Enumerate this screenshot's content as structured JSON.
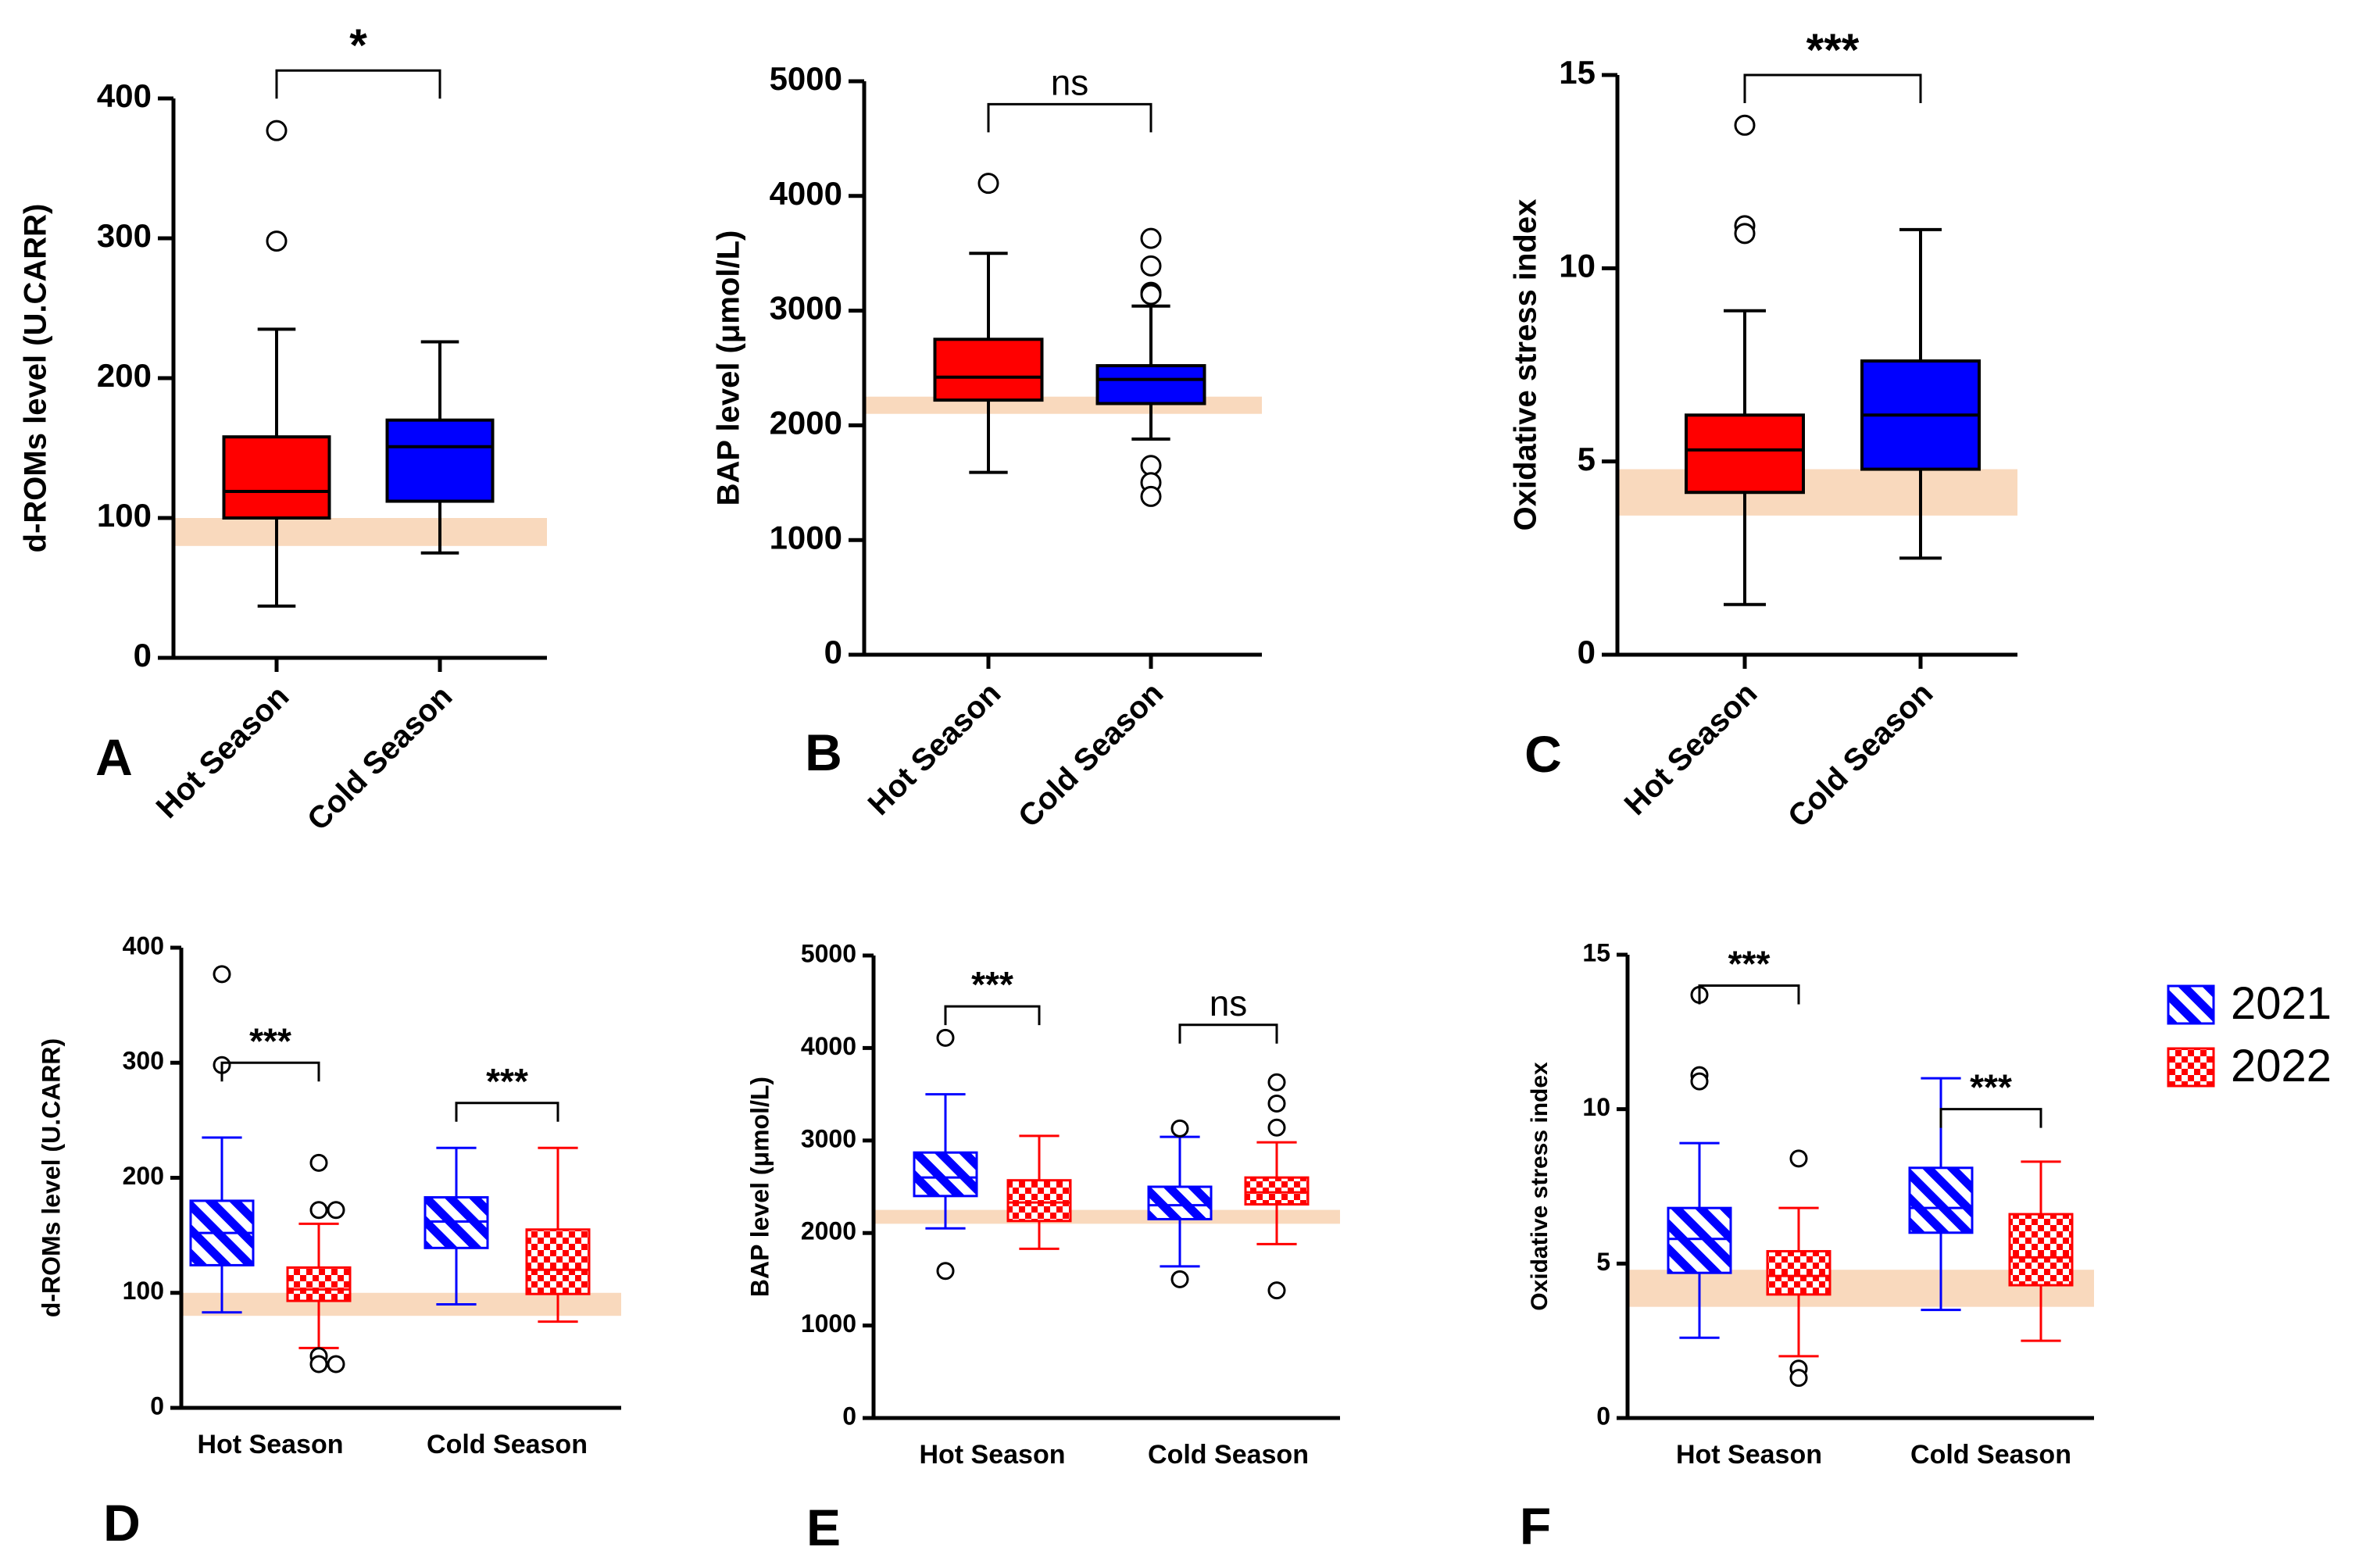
{
  "figure": {
    "legend": {
      "entries": [
        {
          "label": "2021",
          "color": "#0000ff",
          "pattern": "diagonal-stripes"
        },
        {
          "label": "2022",
          "color": "#ff0000",
          "pattern": "checkerboard"
        }
      ]
    },
    "colors": {
      "hot": "#ff0000",
      "cold": "#0000ff",
      "reference_band": "#f9d9bd",
      "text": "#000000"
    }
  },
  "chart_data": [
    {
      "panel": "A",
      "type": "box",
      "ylabel": "d-ROMs level (U.CARR)",
      "ylim": [
        0,
        400
      ],
      "yticks": [
        0,
        100,
        200,
        300,
        400
      ],
      "categories": [
        "Hot Season",
        "Cold Season"
      ],
      "reference_band": [
        80,
        100
      ],
      "boxes": [
        {
          "category": "Hot Season",
          "color": "#ff0000",
          "min": 37,
          "q1": 100,
          "median": 119,
          "q3": 158,
          "max": 235,
          "outliers": [
            298,
            377
          ]
        },
        {
          "category": "Cold Season",
          "color": "#0000ff",
          "min": 75,
          "q1": 112,
          "median": 151,
          "q3": 170,
          "max": 226,
          "outliers": []
        }
      ],
      "significance": [
        {
          "from": 0,
          "to": 1,
          "label": "*",
          "y": 420
        }
      ]
    },
    {
      "panel": "B",
      "type": "box",
      "ylabel": "BAP level (μmol/L)",
      "ylim": [
        0,
        5000
      ],
      "yticks": [
        0,
        1000,
        2000,
        3000,
        4000,
        5000
      ],
      "categories": [
        "Hot Season",
        "Cold Season"
      ],
      "reference_band": [
        2100,
        2250
      ],
      "boxes": [
        {
          "category": "Hot Season",
          "color": "#ff0000",
          "min": 1590,
          "q1": 2220,
          "median": 2420,
          "q3": 2750,
          "max": 3500,
          "outliers": [
            4110
          ]
        },
        {
          "category": "Cold Season",
          "color": "#0000ff",
          "min": 1880,
          "q1": 2190,
          "median": 2400,
          "q3": 2520,
          "max": 3040,
          "outliers": [
            3630,
            3390,
            3160,
            3140,
            1650,
            1500,
            1380
          ]
        }
      ],
      "significance": [
        {
          "from": 0,
          "to": 1,
          "label": "ns",
          "y": 4800
        }
      ]
    },
    {
      "panel": "C",
      "type": "box",
      "ylabel": "Oxidative stress index",
      "ylim": [
        0,
        15
      ],
      "yticks": [
        0,
        5,
        10,
        15
      ],
      "categories": [
        "Hot Season",
        "Cold Season"
      ],
      "reference_band": [
        3.6,
        4.8
      ],
      "boxes": [
        {
          "category": "Hot Season",
          "color": "#ff0000",
          "min": 1.3,
          "q1": 4.2,
          "median": 5.3,
          "q3": 6.2,
          "max": 8.9,
          "outliers": [
            13.7,
            11.1,
            10.9
          ]
        },
        {
          "category": "Cold Season",
          "color": "#0000ff",
          "min": 2.5,
          "q1": 4.8,
          "median": 6.2,
          "q3": 7.6,
          "max": 11.0,
          "outliers": []
        }
      ],
      "significance": [
        {
          "from": 0,
          "to": 1,
          "label": "***",
          "y": 15.0
        }
      ]
    },
    {
      "panel": "D",
      "type": "box",
      "ylabel": "d-ROMs level (U.CARR)",
      "ylim": [
        0,
        400
      ],
      "yticks": [
        0,
        100,
        200,
        300,
        400
      ],
      "categories": [
        "Hot Season",
        "Cold Season"
      ],
      "reference_band": [
        80,
        100
      ],
      "boxes": [
        {
          "category": "Hot Season",
          "series": "2021",
          "color": "#0000ff",
          "min": 83,
          "q1": 124,
          "median": 152,
          "q3": 180,
          "max": 235,
          "outliers": [
            298,
            377
          ]
        },
        {
          "category": "Hot Season",
          "series": "2022",
          "color": "#ff0000",
          "min": 52,
          "q1": 93,
          "median": 103,
          "q3": 122,
          "max": 160,
          "outliers": [
            213,
            172,
            172,
            45,
            38,
            38
          ]
        },
        {
          "category": "Cold Season",
          "series": "2021",
          "color": "#0000ff",
          "min": 90,
          "q1": 139,
          "median": 162,
          "q3": 183,
          "max": 226,
          "outliers": []
        },
        {
          "category": "Cold Season",
          "series": "2022",
          "color": "#ff0000",
          "min": 75,
          "q1": 99,
          "median": 120,
          "q3": 155,
          "max": 226,
          "outliers": []
        }
      ],
      "significance": [
        {
          "from": 0,
          "to": 1,
          "label": "***",
          "y": 300
        },
        {
          "from": 2,
          "to": 3,
          "label": "***",
          "y": 265
        }
      ]
    },
    {
      "panel": "E",
      "type": "box",
      "ylabel": "BAP level (μmol/L)",
      "ylim": [
        0,
        5000
      ],
      "yticks": [
        0,
        1000,
        2000,
        3000,
        4000,
        5000
      ],
      "categories": [
        "Hot Season",
        "Cold Season"
      ],
      "reference_band": [
        2100,
        2250
      ],
      "boxes": [
        {
          "category": "Hot Season",
          "series": "2021",
          "color": "#0000ff",
          "min": 2050,
          "q1": 2400,
          "median": 2600,
          "q3": 2870,
          "max": 3500,
          "outliers": [
            4110,
            1590
          ]
        },
        {
          "category": "Hot Season",
          "series": "2022",
          "color": "#ff0000",
          "min": 1830,
          "q1": 2130,
          "median": 2330,
          "q3": 2570,
          "max": 3050,
          "outliers": []
        },
        {
          "category": "Cold Season",
          "series": "2021",
          "color": "#0000ff",
          "min": 1640,
          "q1": 2150,
          "median": 2300,
          "q3": 2500,
          "max": 3040,
          "outliers": [
            3130,
            1500
          ]
        },
        {
          "category": "Cold Season",
          "series": "2022",
          "color": "#ff0000",
          "min": 1880,
          "q1": 2310,
          "median": 2440,
          "q3": 2600,
          "max": 2980,
          "outliers": [
            3630,
            3400,
            3140,
            1380
          ]
        }
      ],
      "significance": [
        {
          "from": 0,
          "to": 1,
          "label": "***",
          "y": 4450
        },
        {
          "from": 2,
          "to": 3,
          "label": "ns",
          "y": 4250
        }
      ]
    },
    {
      "panel": "F",
      "type": "box",
      "ylabel": "Oxidative stress index",
      "ylim": [
        0,
        15
      ],
      "yticks": [
        0,
        5,
        10,
        15
      ],
      "categories": [
        "Hot Season",
        "Cold Season"
      ],
      "reference_band": [
        3.6,
        4.8
      ],
      "boxes": [
        {
          "category": "Hot Season",
          "series": "2021",
          "color": "#0000ff",
          "min": 2.6,
          "q1": 4.7,
          "median": 5.8,
          "q3": 6.8,
          "max": 8.9,
          "outliers": [
            13.7,
            11.1,
            10.9
          ]
        },
        {
          "category": "Hot Season",
          "series": "2022",
          "color": "#ff0000",
          "min": 2.0,
          "q1": 4.0,
          "median": 4.6,
          "q3": 5.4,
          "max": 6.8,
          "outliers": [
            8.4,
            1.6,
            1.3
          ]
        },
        {
          "category": "Cold Season",
          "series": "2021",
          "color": "#0000ff",
          "min": 3.5,
          "q1": 6.0,
          "median": 6.8,
          "q3": 8.1,
          "max": 11.0,
          "outliers": []
        },
        {
          "category": "Cold Season",
          "series": "2022",
          "color": "#ff0000",
          "min": 2.5,
          "q1": 4.3,
          "median": 5.2,
          "q3": 6.6,
          "max": 8.3,
          "outliers": []
        }
      ],
      "significance": [
        {
          "from": 0,
          "to": 1,
          "label": "***",
          "y": 14.0
        },
        {
          "from": 2,
          "to": 3,
          "label": "***",
          "y": 10.0
        }
      ]
    }
  ]
}
